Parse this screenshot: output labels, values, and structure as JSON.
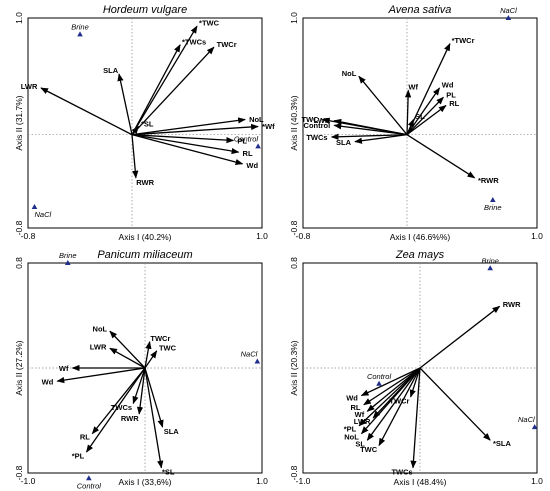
{
  "chart_data": [
    {
      "type": "biplot",
      "title": "Hordeum vulgare",
      "xlabel": "Axis I (40.2%)",
      "ylabel": "Axis II (31.7%)",
      "xlim": [
        -0.8,
        1.0
      ],
      "ylim": [
        -0.8,
        1.0
      ],
      "x_tick_labels": [
        "-0.8",
        "1.0"
      ],
      "y_tick_labels": [
        "1.0",
        "-0.8"
      ],
      "vectors": [
        {
          "label": "*TWC",
          "x": 0.5,
          "y": 0.93
        },
        {
          "label": "*TWCs",
          "x": 0.37,
          "y": 0.77
        },
        {
          "label": "TWCr",
          "x": 0.63,
          "y": 0.75
        },
        {
          "label": "SLA",
          "x": -0.1,
          "y": 0.52
        },
        {
          "label": "LWR",
          "x": -0.7,
          "y": 0.4
        },
        {
          "label": "*SL",
          "x": 0.05,
          "y": 0.07
        },
        {
          "label": "NoL",
          "x": 0.87,
          "y": 0.13
        },
        {
          "label": "*Wf",
          "x": 0.97,
          "y": 0.07
        },
        {
          "label": "PL",
          "x": 0.78,
          "y": -0.05
        },
        {
          "label": "RL",
          "x": 0.82,
          "y": -0.15
        },
        {
          "label": "Wd",
          "x": 0.85,
          "y": -0.25
        },
        {
          "label": "RWR",
          "x": 0.03,
          "y": -0.37
        }
      ],
      "points": [
        {
          "label": "Brine",
          "x": -0.4,
          "y": 0.86
        },
        {
          "label": "Control",
          "x": 0.97,
          "y": -0.1
        },
        {
          "label": "NaCl",
          "x": -0.75,
          "y": -0.62
        }
      ]
    },
    {
      "type": "biplot",
      "title": "Avena sativa",
      "xlabel": "Axis I (46.6%%)",
      "ylabel": "Axis II (40.3%)",
      "xlim": [
        -0.8,
        1.0
      ],
      "ylim": [
        -0.8,
        1.0
      ],
      "x_tick_labels": [
        "-0.8",
        "1.0"
      ],
      "y_tick_labels": [
        "1.0",
        "-0.8"
      ],
      "vectors": [
        {
          "label": "*TWCr",
          "x": 0.33,
          "y": 0.78
        },
        {
          "label": "NoL",
          "x": -0.37,
          "y": 0.5
        },
        {
          "label": "Wf",
          "x": 0.01,
          "y": 0.38
        },
        {
          "label": "Wd",
          "x": 0.25,
          "y": 0.4
        },
        {
          "label": "PL",
          "x": 0.28,
          "y": 0.32
        },
        {
          "label": "RL",
          "x": 0.3,
          "y": 0.25
        },
        {
          "label": "SL",
          "x": 0.05,
          "y": 0.13
        },
        {
          "label": "TWC",
          "x": -0.65,
          "y": 0.13
        },
        {
          "label": "LWR",
          "x": -0.56,
          "y": 0.12
        },
        {
          "label": "Control",
          "x": -0.56,
          "y": 0.08
        },
        {
          "label": "TWCs",
          "x": -0.58,
          "y": -0.02
        },
        {
          "label": "SLA",
          "x": -0.4,
          "y": -0.06
        },
        {
          "label": "*RWR",
          "x": 0.52,
          "y": -0.37
        }
      ],
      "points": [
        {
          "label": "NaCl",
          "x": 0.78,
          "y": 1.0
        },
        {
          "label": "Brine",
          "x": 0.66,
          "y": -0.56
        }
      ]
    },
    {
      "type": "biplot",
      "title": "Panicum miliaceum",
      "xlabel": "Axis I (33,6%)",
      "ylabel": "Axis II (27.2%)",
      "xlim": [
        -1.0,
        1.0
      ],
      "ylim": [
        -0.8,
        0.8
      ],
      "x_tick_labels": [
        "-1.0",
        "1.0"
      ],
      "y_tick_labels": [
        "0.8",
        "-0.8"
      ],
      "vectors": [
        {
          "label": "NoL",
          "x": -0.3,
          "y": 0.28
        },
        {
          "label": "LWR",
          "x": -0.3,
          "y": 0.15
        },
        {
          "label": "TWCr",
          "x": 0.04,
          "y": 0.2
        },
        {
          "label": "TWC",
          "x": 0.1,
          "y": 0.13
        },
        {
          "label": "Wf",
          "x": -0.62,
          "y": 0.0
        },
        {
          "label": "Wd",
          "x": -0.75,
          "y": -0.1
        },
        {
          "label": "TWCs",
          "x": -0.1,
          "y": -0.27
        },
        {
          "label": "RWR",
          "x": -0.05,
          "y": -0.35
        },
        {
          "label": "SLA",
          "x": 0.15,
          "y": -0.45
        },
        {
          "label": "RL",
          "x": -0.45,
          "y": -0.5
        },
        {
          "label": "*PL",
          "x": -0.5,
          "y": -0.64
        },
        {
          "label": "*SL",
          "x": 0.14,
          "y": -0.76
        }
      ],
      "points": [
        {
          "label": "Brine",
          "x": -0.66,
          "y": 0.8
        },
        {
          "label": "Control",
          "x": -0.48,
          "y": -0.84
        },
        {
          "label": "NaCl",
          "x": 0.96,
          "y": 0.05
        }
      ]
    },
    {
      "type": "biplot",
      "title": "Zea mays",
      "xlabel": "Axis I (48.4%)",
      "ylabel": "Axis II (20.3%)",
      "xlim": [
        -1.0,
        1.0
      ],
      "ylim": [
        -0.8,
        0.8
      ],
      "x_tick_labels": [
        "-1.0",
        "1.0"
      ],
      "y_tick_labels": [
        "0.8",
        "-0.8"
      ],
      "vectors": [
        {
          "label": "RWR",
          "x": 0.68,
          "y": 0.47
        },
        {
          "label": "Wd",
          "x": -0.5,
          "y": -0.21
        },
        {
          "label": "RL",
          "x": -0.48,
          "y": -0.28
        },
        {
          "label": "Wf",
          "x": -0.45,
          "y": -0.33
        },
        {
          "label": "LWR",
          "x": -0.4,
          "y": -0.38
        },
        {
          "label": "*PL",
          "x": -0.52,
          "y": -0.44
        },
        {
          "label": "NoL",
          "x": -0.5,
          "y": -0.5
        },
        {
          "label": "SL",
          "x": -0.45,
          "y": -0.55
        },
        {
          "label": "TWC",
          "x": -0.35,
          "y": -0.59
        },
        {
          "label": "TWCr",
          "x": -0.08,
          "y": -0.22
        },
        {
          "label": "TWCs",
          "x": -0.06,
          "y": -0.76
        },
        {
          "label": "*SLA",
          "x": 0.6,
          "y": -0.55
        }
      ],
      "points": [
        {
          "label": "Brine",
          "x": 0.6,
          "y": 0.76
        },
        {
          "label": "Control",
          "x": -0.35,
          "y": -0.12
        },
        {
          "label": "NaCl",
          "x": 0.98,
          "y": -0.45
        }
      ]
    }
  ]
}
